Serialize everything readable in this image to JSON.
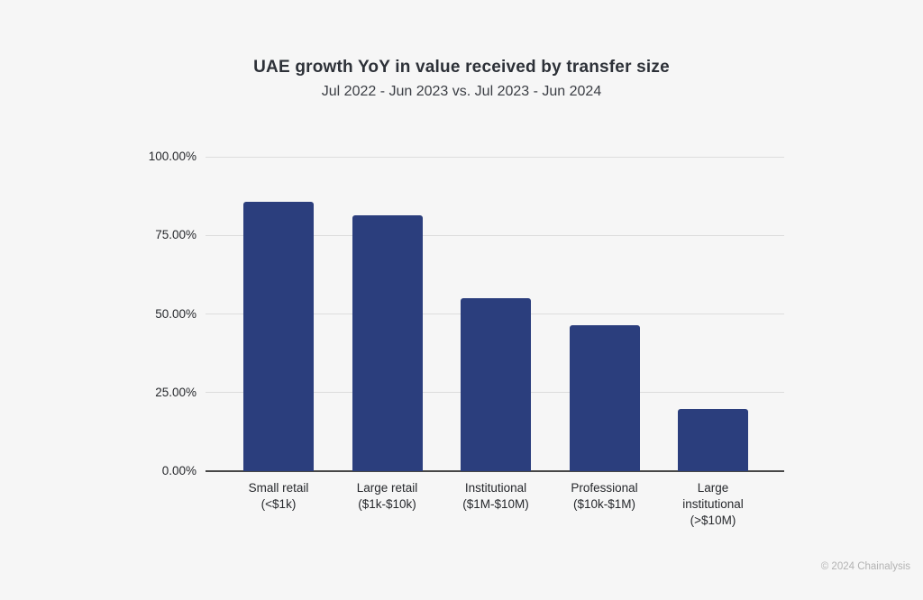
{
  "page": {
    "background_color": "#f6f6f6"
  },
  "header": {
    "title": "UAE growth YoY in value received by transfer size",
    "subtitle": "Jul 2022 - Jun 2023 vs. Jul 2023 - Jun 2024"
  },
  "footer": {
    "copyright": "© 2024 Chainalysis"
  },
  "chart_data": {
    "type": "bar",
    "title": "UAE growth YoY in value received by transfer size",
    "subtitle": "Jul 2022 - Jun 2023 vs. Jul 2023 - Jun 2024",
    "categories": [
      "Small retail (<$1k)",
      "Large retail ($1k-$10k)",
      "Institutional ($1M-$10M)",
      "Professional ($10k-$1M)",
      "Large institutional (>$10M)"
    ],
    "category_label_lines": [
      [
        "Small retail",
        "(<$1k)"
      ],
      [
        "Large retail",
        "($1k-$10k)"
      ],
      [
        "Institutional",
        "($1M-$10M)"
      ],
      [
        "Professional",
        "($10k-$1M)"
      ],
      [
        "Large",
        "institutional",
        "(>$10M)"
      ]
    ],
    "values": [
      85.7,
      81.4,
      55.0,
      46.3,
      19.9
    ],
    "unit": "%",
    "xlabel": "",
    "ylabel": "",
    "ylim": [
      0,
      100
    ],
    "yticks": [
      0,
      25,
      50,
      75,
      100
    ],
    "ytick_labels": [
      "0.00%",
      "25.00%",
      "50.00%",
      "75.00%",
      "100.00%"
    ],
    "grid": true,
    "legend": false,
    "bar_color": "#2b3e7d",
    "gridline_color": "#dddddd",
    "axis_line_color": "#474747"
  }
}
